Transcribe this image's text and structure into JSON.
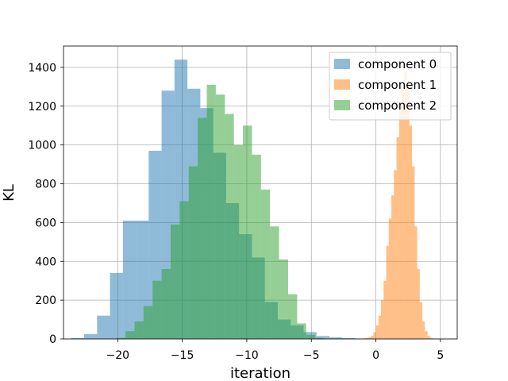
{
  "chart_data": {
    "type": "bar",
    "subtype": "histogram",
    "title": "",
    "xlabel": "iteration",
    "ylabel": "KL",
    "xlim": [
      -24.2,
      6.3
    ],
    "ylim": [
      0,
      1510
    ],
    "xticks": [
      -20,
      -15,
      -10,
      -5,
      0,
      5
    ],
    "xtick_labels": [
      "−20",
      "−15",
      "−10",
      "−5",
      "0",
      "5"
    ],
    "yticks": [
      0,
      200,
      400,
      600,
      800,
      1000,
      1200,
      1400
    ],
    "ytick_labels": [
      "0",
      "200",
      "400",
      "600",
      "800",
      "1000",
      "1200",
      "1400"
    ],
    "grid": true,
    "legend_position": "top-right",
    "series": [
      {
        "name": "component 0",
        "color": "#1f77b4",
        "alpha": 0.5,
        "bin_start": -23.6,
        "bin_width": 1.0,
        "values": [
          5,
          25,
          120,
          340,
          610,
          610,
          970,
          1280,
          1440,
          1290,
          1190,
          960,
          700,
          540,
          420,
          190,
          100,
          70,
          35,
          15,
          8,
          5,
          2
        ]
      },
      {
        "name": "component 1",
        "color": "#ff7f0e",
        "alpha": 0.5,
        "bin_start": -1.2,
        "bin_width": 0.2,
        "values": [
          2,
          3,
          5,
          8,
          15,
          35,
          70,
          120,
          200,
          300,
          480,
          620,
          740,
          870,
          1040,
          1200,
          1280,
          1380,
          1320,
          1100,
          890,
          580,
          360,
          190,
          90,
          40,
          15,
          5
        ]
      },
      {
        "name": "component 2",
        "color": "#2ca02c",
        "alpha": 0.5,
        "bin_start": -20.1,
        "bin_width": 0.7,
        "values": [
          5,
          40,
          90,
          170,
          300,
          360,
          590,
          710,
          890,
          1140,
          1310,
          1260,
          1160,
          1000,
          1100,
          950,
          770,
          580,
          410,
          230,
          80,
          20,
          5
        ]
      }
    ]
  }
}
